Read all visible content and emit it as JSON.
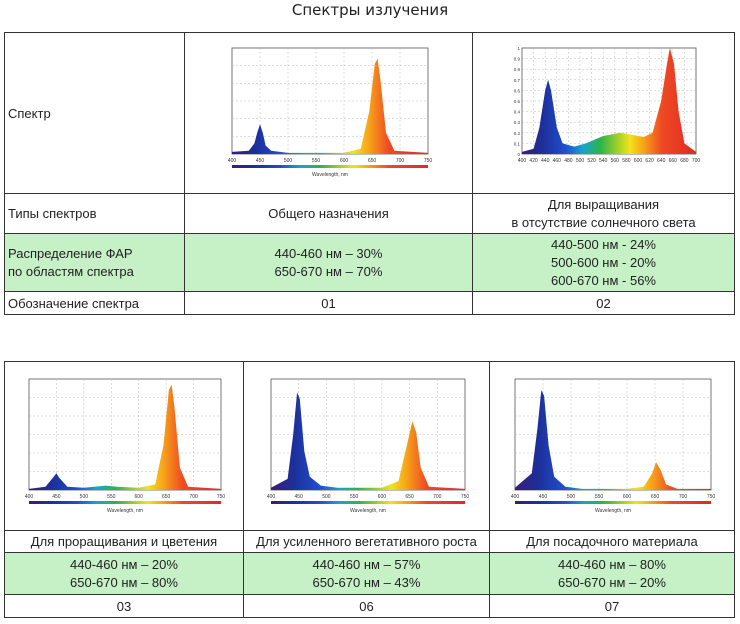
{
  "title": "Спектры излучения",
  "table1": {
    "row_labels": {
      "spectrum": "Спектр",
      "types": "Типы спектров",
      "par": "Распределение ФАР\nпо областям спектра",
      "code": "Обозначение спектра"
    },
    "columns": [
      {
        "type": "Общего назначения",
        "par": [
          "440-460 нм – 30%",
          "650-670 нм – 70%"
        ],
        "code": "01"
      },
      {
        "type": "Для выращивания\nв отсутствие солнечного света",
        "par": [
          "440-500 нм - 24%",
          "500-600 нм - 20%",
          "600-670 нм - 56%"
        ],
        "code": "02"
      }
    ]
  },
  "table2": {
    "columns": [
      {
        "type": "Для проращивания и цветения",
        "par": [
          "440-460 нм – 20%",
          "650-670 нм – 80%"
        ],
        "code": "03"
      },
      {
        "type": "Для усиленного вегетативного роста",
        "par": [
          "440-460 нм – 57%",
          "650-670 нм – 43%"
        ],
        "code": "06"
      },
      {
        "type": "Для посадочного материала",
        "par": [
          "440-460 нм – 80%",
          "650-670 нм – 20%"
        ],
        "code": "07"
      }
    ]
  },
  "chart_data": [
    {
      "id": "01",
      "type": "area",
      "xlabel": "Wavelength, nm",
      "x_ticks": [
        "400",
        "450",
        "500",
        "550",
        "600",
        "650",
        "700",
        "750"
      ],
      "xlim": [
        400,
        750
      ],
      "ylim": [
        0,
        1
      ],
      "series": [
        {
          "values": [
            [
              400,
              0.02
            ],
            [
              430,
              0.03
            ],
            [
              440,
              0.1
            ],
            [
              445,
              0.2
            ],
            [
              450,
              0.28
            ],
            [
              455,
              0.2
            ],
            [
              460,
              0.08
            ],
            [
              470,
              0.03
            ],
            [
              500,
              0.01
            ],
            [
              600,
              0.01
            ],
            [
              630,
              0.05
            ],
            [
              645,
              0.4
            ],
            [
              655,
              0.85
            ],
            [
              660,
              0.9
            ],
            [
              665,
              0.7
            ],
            [
              675,
              0.2
            ],
            [
              690,
              0.03
            ],
            [
              750,
              0.01
            ]
          ]
        }
      ]
    },
    {
      "id": "02",
      "type": "area",
      "x_ticks": [
        "400",
        "420",
        "440",
        "460",
        "480",
        "500",
        "520",
        "540",
        "560",
        "580",
        "600",
        "620",
        "640",
        "660",
        "680",
        "700"
      ],
      "y_ticks": [
        "0",
        "0.1",
        "0.2",
        "0.3",
        "0.4",
        "0.5",
        "0.6",
        "0.7",
        "0.8",
        "0.9",
        "1"
      ],
      "xlim": [
        400,
        700
      ],
      "ylim": [
        0,
        1
      ],
      "series": [
        {
          "values": [
            [
              400,
              0.02
            ],
            [
              420,
              0.05
            ],
            [
              430,
              0.25
            ],
            [
              440,
              0.6
            ],
            [
              445,
              0.7
            ],
            [
              450,
              0.6
            ],
            [
              460,
              0.25
            ],
            [
              470,
              0.1
            ],
            [
              490,
              0.07
            ],
            [
              510,
              0.1
            ],
            [
              540,
              0.17
            ],
            [
              570,
              0.2
            ],
            [
              590,
              0.18
            ],
            [
              610,
              0.16
            ],
            [
              625,
              0.2
            ],
            [
              640,
              0.5
            ],
            [
              650,
              0.85
            ],
            [
              655,
              1.0
            ],
            [
              662,
              0.85
            ],
            [
              670,
              0.4
            ],
            [
              680,
              0.1
            ],
            [
              700,
              0.02
            ]
          ]
        }
      ]
    },
    {
      "id": "03",
      "type": "area",
      "xlabel": "Wavelength, nm",
      "x_ticks": [
        "400",
        "450",
        "500",
        "550",
        "600",
        "650",
        "700",
        "750"
      ],
      "xlim": [
        400,
        750
      ],
      "ylim": [
        0,
        1
      ],
      "series": [
        {
          "values": [
            [
              400,
              0.01
            ],
            [
              430,
              0.03
            ],
            [
              445,
              0.12
            ],
            [
              450,
              0.15
            ],
            [
              455,
              0.11
            ],
            [
              470,
              0.03
            ],
            [
              500,
              0.02
            ],
            [
              540,
              0.04
            ],
            [
              560,
              0.03
            ],
            [
              600,
              0.02
            ],
            [
              630,
              0.05
            ],
            [
              645,
              0.4
            ],
            [
              655,
              0.9
            ],
            [
              660,
              0.95
            ],
            [
              665,
              0.75
            ],
            [
              675,
              0.2
            ],
            [
              690,
              0.03
            ],
            [
              750,
              0.01
            ]
          ]
        }
      ]
    },
    {
      "id": "06",
      "type": "area",
      "xlabel": "Wavelength, nm",
      "x_ticks": [
        "400",
        "450",
        "500",
        "550",
        "600",
        "650",
        "700",
        "750"
      ],
      "xlim": [
        400,
        750
      ],
      "ylim": [
        0,
        1
      ],
      "series": [
        {
          "values": [
            [
              400,
              0.02
            ],
            [
              430,
              0.1
            ],
            [
              440,
              0.5
            ],
            [
              447,
              0.88
            ],
            [
              452,
              0.82
            ],
            [
              460,
              0.35
            ],
            [
              470,
              0.12
            ],
            [
              490,
              0.04
            ],
            [
              520,
              0.02
            ],
            [
              600,
              0.02
            ],
            [
              630,
              0.08
            ],
            [
              645,
              0.4
            ],
            [
              655,
              0.62
            ],
            [
              662,
              0.52
            ],
            [
              670,
              0.2
            ],
            [
              685,
              0.03
            ],
            [
              750,
              0.01
            ]
          ]
        }
      ]
    },
    {
      "id": "07",
      "type": "area",
      "xlabel": "Wavelength, nm",
      "x_ticks": [
        "400",
        "450",
        "500",
        "550",
        "600",
        "650",
        "700",
        "750"
      ],
      "xlim": [
        400,
        750
      ],
      "ylim": [
        0,
        1
      ],
      "series": [
        {
          "values": [
            [
              400,
              0.02
            ],
            [
              430,
              0.15
            ],
            [
              440,
              0.55
            ],
            [
              447,
              0.9
            ],
            [
              452,
              0.85
            ],
            [
              460,
              0.4
            ],
            [
              470,
              0.12
            ],
            [
              490,
              0.03
            ],
            [
              520,
              0.01
            ],
            [
              600,
              0.01
            ],
            [
              630,
              0.03
            ],
            [
              645,
              0.15
            ],
            [
              652,
              0.25
            ],
            [
              660,
              0.18
            ],
            [
              670,
              0.05
            ],
            [
              690,
              0.01
            ],
            [
              750,
              0.01
            ]
          ]
        }
      ]
    }
  ]
}
